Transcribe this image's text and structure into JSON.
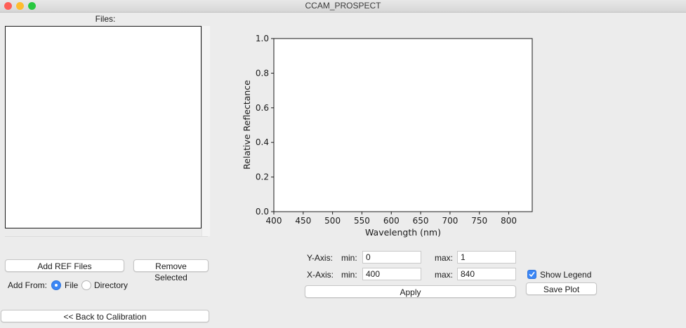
{
  "window": {
    "title": "CCAM_PROSPECT"
  },
  "colors": {
    "close": "#fe5f57",
    "minimize": "#febc2e",
    "zoom": "#28c840",
    "accent": "#3b86f5"
  },
  "files_panel": {
    "label": "Files:",
    "items": [],
    "add_ref_label": "Add REF Files",
    "remove_selected_label": "Remove Selected",
    "add_from_label": "Add From:",
    "radio_file_label": "File",
    "radio_directory_label": "Directory",
    "selected_source": "File",
    "back_label": "<< Back to Calibration"
  },
  "axis_controls": {
    "y_axis_label": "Y-Axis:",
    "x_axis_label": "X-Axis:",
    "min_label": "min:",
    "max_label": "max:",
    "y_min": "0",
    "y_max": "1",
    "x_min": "400",
    "x_max": "840",
    "apply_label": "Apply",
    "show_legend_label": "Show Legend",
    "show_legend_checked": true,
    "save_plot_label": "Save Plot"
  },
  "chart_data": {
    "type": "line",
    "series": [],
    "xlabel": "Wavelength (nm)",
    "ylabel": "Relative Reflectance",
    "xlim": [
      400,
      840
    ],
    "ylim": [
      0,
      1
    ],
    "xticks": [
      400,
      450,
      500,
      550,
      600,
      650,
      700,
      750,
      800
    ],
    "yticks": [
      0.0,
      0.2,
      0.4,
      0.6,
      0.8,
      1.0
    ],
    "xtick_labels": [
      "400",
      "450",
      "500",
      "550",
      "600",
      "650",
      "700",
      "750",
      "800"
    ],
    "ytick_labels": [
      "0.0",
      "0.2",
      "0.4",
      "0.6",
      "0.8",
      "1.0"
    ],
    "grid": false
  }
}
